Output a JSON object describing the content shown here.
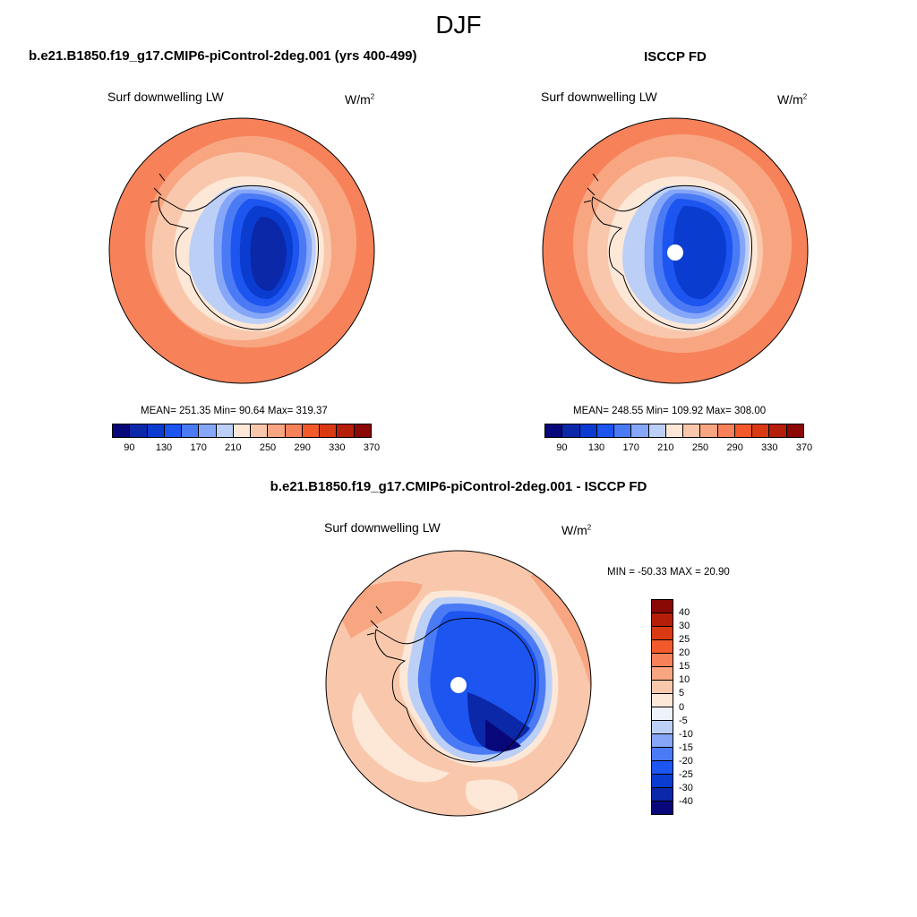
{
  "page": {
    "title": "DJF"
  },
  "panels": [
    {
      "id": "model",
      "title": "b.e21.B1850.f19_g17.CMIP6-piControl-2deg.001 (yrs 400-499)",
      "variable": "Surf downwelling LW",
      "units": "W/m",
      "units_exp": "2",
      "stats": "MEAN= 251.35  Min=  90.64  Max= 319.37"
    },
    {
      "id": "obs",
      "title": "ISCCP FD",
      "variable": "Surf downwelling LW",
      "units": "W/m",
      "units_exp": "2",
      "stats": "MEAN= 248.55  Min= 109.92  Max= 308.00"
    },
    {
      "id": "diff",
      "title": "b.e21.B1850.f19_g17.CMIP6-piControl-2deg.001 - ISCCP FD",
      "variable": "Surf downwelling LW",
      "units": "W/m",
      "units_exp": "2",
      "stats": "MIN = -50.33 MAX =  20.90"
    }
  ],
  "colorbars": {
    "abs": {
      "colors": [
        "#08087a",
        "#0a28a8",
        "#0b3cd0",
        "#1d55f0",
        "#4b7af5",
        "#86a6f7",
        "#bcd0f7",
        "#fde8d8",
        "#f9c8ac",
        "#f8a682",
        "#f7825a",
        "#f25a2c",
        "#d93a14",
        "#b51e08",
        "#8a0806"
      ],
      "tick_labels": [
        "90",
        "130",
        "170",
        "210",
        "250",
        "290",
        "330",
        "370"
      ]
    },
    "diff": {
      "colors": [
        "#8a0806",
        "#b51e08",
        "#d93a14",
        "#f25a2c",
        "#f7825a",
        "#f8a682",
        "#f9c8ac",
        "#fde8d8",
        "#eef3fb",
        "#bcd0f7",
        "#86a6f7",
        "#4b7af5",
        "#1d55f0",
        "#0b3cd0",
        "#0a28a8",
        "#08087a"
      ],
      "tick_labels": [
        "40",
        "30",
        "25",
        "20",
        "15",
        "10",
        "5",
        "0",
        "-5",
        "-10",
        "-15",
        "-20",
        "-25",
        "-30",
        "-40"
      ]
    }
  },
  "chart_data": [
    {
      "type": "heatmap",
      "title": "b.e21.B1850.f19_g17.CMIP6-piControl-2deg.001 (yrs 400-499)",
      "variable": "Surf downwelling LW",
      "units": "W/m2",
      "projection": "south polar stereographic",
      "colorbar_levels": [
        90,
        110,
        130,
        150,
        170,
        190,
        210,
        230,
        250,
        270,
        290,
        310,
        330,
        350,
        370
      ],
      "mean": 251.35,
      "min": 90.64,
      "max": 319.37
    },
    {
      "type": "heatmap",
      "title": "ISCCP FD",
      "variable": "Surf downwelling LW",
      "units": "W/m2",
      "projection": "south polar stereographic",
      "colorbar_levels": [
        90,
        110,
        130,
        150,
        170,
        190,
        210,
        230,
        250,
        270,
        290,
        310,
        330,
        350,
        370
      ],
      "mean": 248.55,
      "min": 109.92,
      "max": 308.0
    },
    {
      "type": "heatmap",
      "title": "b.e21.B1850.f19_g17.CMIP6-piControl-2deg.001 - ISCCP FD",
      "variable": "Surf downwelling LW",
      "units": "W/m2",
      "projection": "south polar stereographic",
      "colorbar_levels": [
        40,
        30,
        25,
        20,
        15,
        10,
        5,
        0,
        -5,
        -10,
        -15,
        -20,
        -25,
        -30,
        -40
      ],
      "min": -50.33,
      "max": 20.9
    }
  ]
}
